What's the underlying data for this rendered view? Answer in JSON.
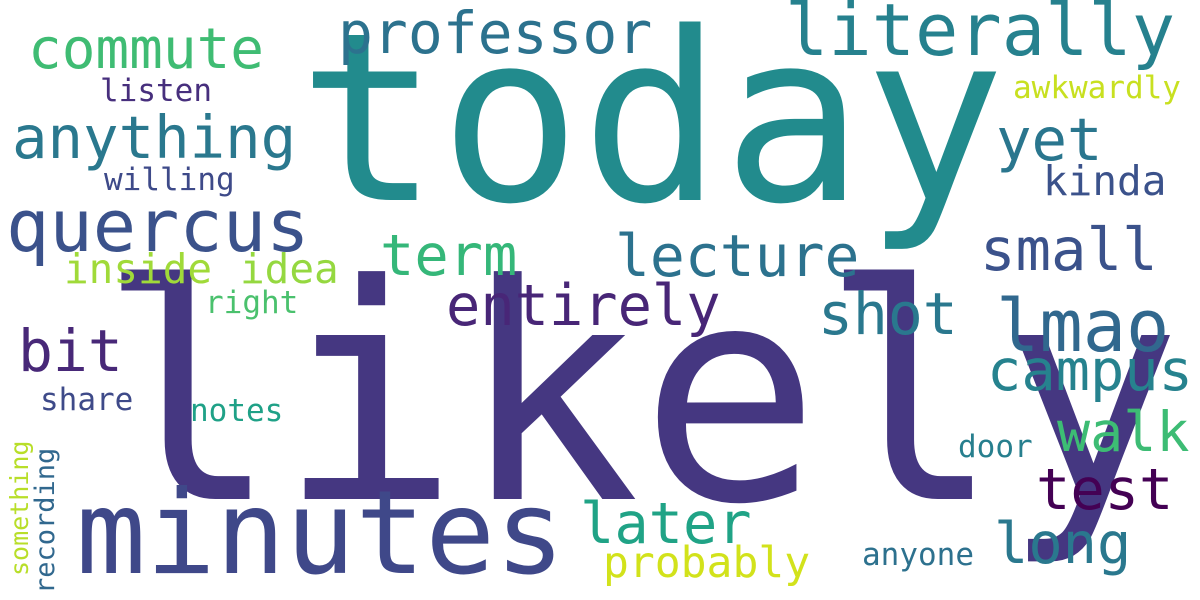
{
  "words": [
    {
      "text": "today",
      "color": "#228b8d"
    },
    {
      "text": "likely",
      "color": "#453781"
    },
    {
      "text": "minutes",
      "color": "#3f4889"
    },
    {
      "text": "literally",
      "color": "#26818e"
    },
    {
      "text": "professor",
      "color": "#2c728e"
    },
    {
      "text": "commute",
      "color": "#3fbc73"
    },
    {
      "text": "anything",
      "color": "#2a788e"
    },
    {
      "text": "quercus",
      "color": "#3b528b"
    },
    {
      "text": "listen",
      "color": "#472f7d"
    },
    {
      "text": "willing",
      "color": "#3e4a89"
    },
    {
      "text": "awkwardly",
      "color": "#c8e020"
    },
    {
      "text": "yet",
      "color": "#2a768e"
    },
    {
      "text": "kinda",
      "color": "#3b528b"
    },
    {
      "text": "term",
      "color": "#35b779"
    },
    {
      "text": "lecture",
      "color": "#2c728e"
    },
    {
      "text": "small",
      "color": "#3b528b"
    },
    {
      "text": "inside",
      "color": "#a0da39"
    },
    {
      "text": "idea",
      "color": "#95d840"
    },
    {
      "text": "entirely",
      "color": "#482677"
    },
    {
      "text": "shot",
      "color": "#2a788e"
    },
    {
      "text": "lmao",
      "color": "#31688e"
    },
    {
      "text": "right",
      "color": "#4ac16d"
    },
    {
      "text": "bit",
      "color": "#482878"
    },
    {
      "text": "campus",
      "color": "#26828e"
    },
    {
      "text": "share",
      "color": "#3e4a89"
    },
    {
      "text": "notes",
      "color": "#1fa187"
    },
    {
      "text": "walk",
      "color": "#3dbc74"
    },
    {
      "text": "door",
      "color": "#277f8e"
    },
    {
      "text": "test",
      "color": "#440154"
    },
    {
      "text": "later",
      "color": "#20a386"
    },
    {
      "text": "long",
      "color": "#2a788e"
    },
    {
      "text": "probably",
      "color": "#d2e21b"
    },
    {
      "text": "anyone",
      "color": "#2d718e"
    },
    {
      "text": "something",
      "color": "#b8de29"
    },
    {
      "text": "recording",
      "color": "#31688e"
    }
  ]
}
